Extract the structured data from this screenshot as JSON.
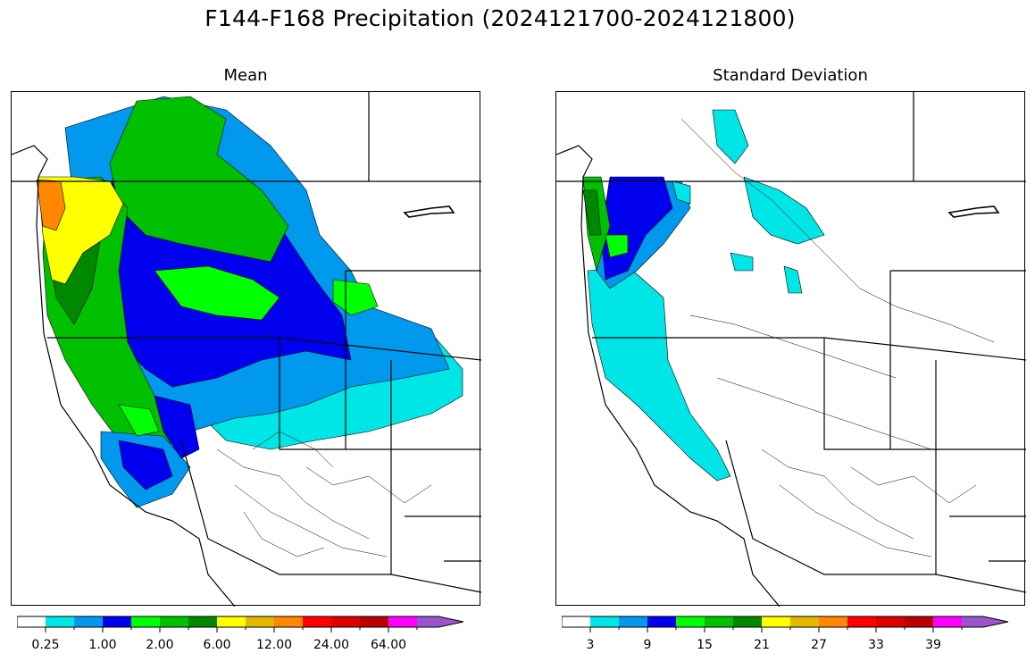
{
  "figure": {
    "title": "F144-F168 Precipitation (2024121700-2024121800)"
  },
  "panels": [
    {
      "title": "Mean",
      "colorbar": {
        "colors": [
          "#ffffff",
          "#00e5e5",
          "#0099ee",
          "#0000ee",
          "#00ff00",
          "#00c000",
          "#008800",
          "#ffff00",
          "#e5b800",
          "#ff8800",
          "#ff0000",
          "#dd0000",
          "#bb0000",
          "#ff00ff",
          "#9955cc"
        ],
        "tick_labels": [
          "0.25",
          "1.00",
          "2.00",
          "6.00",
          "12.00",
          "24.00",
          "64.00"
        ]
      }
    },
    {
      "title": "Standard Deviation",
      "colorbar": {
        "colors": [
          "#ffffff",
          "#00e5e5",
          "#0099ee",
          "#0000ee",
          "#00ff00",
          "#00c000",
          "#008800",
          "#ffff00",
          "#e5b800",
          "#ff8800",
          "#ff0000",
          "#dd0000",
          "#bb0000",
          "#ff00ff",
          "#9955cc"
        ],
        "tick_labels": [
          "3",
          "9",
          "15",
          "21",
          "27",
          "33",
          "39"
        ]
      }
    }
  ]
}
